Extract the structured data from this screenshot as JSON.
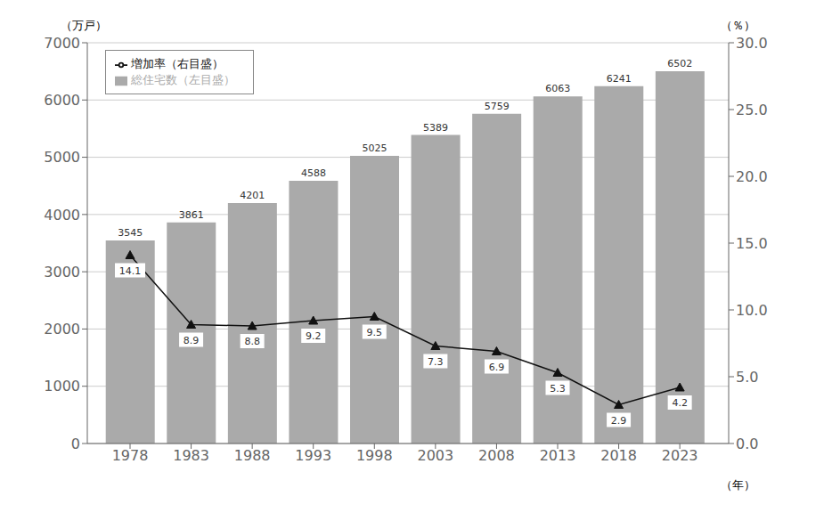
{
  "chart_data": {
    "type": "bar",
    "x_label": "（年）",
    "y_label": "（万戸）",
    "y2_label": "（％）",
    "x": [
      1978,
      1983,
      1988,
      1993,
      1998,
      2003,
      2008,
      2013,
      2018,
      2023
    ],
    "xlim": [
      1974.5,
      2027
    ],
    "xticks": [
      1978,
      1983,
      1988,
      1993,
      1998,
      2003,
      2008,
      2013,
      2018,
      2023
    ],
    "ylim": [
      0,
      7000
    ],
    "yticks": [
      0,
      1000,
      2000,
      3000,
      4000,
      5000,
      6000,
      7000
    ],
    "y2lim": [
      0,
      30.0
    ],
    "y2ticks": [
      {
        "value": 0,
        "label": "0.0"
      },
      {
        "value": 5,
        "label": "5.0"
      },
      {
        "value": 10,
        "label": "10.0"
      },
      {
        "value": 15,
        "label": "15.0"
      },
      {
        "value": 20,
        "label": "20.0"
      },
      {
        "value": 25,
        "label": "25.0"
      },
      {
        "value": 30,
        "label": "30.0"
      }
    ],
    "grid": true,
    "legend": "upper left",
    "series": [
      {
        "name": "総住宅数（左目盛）",
        "type": "bar",
        "color": "#aaaaaa",
        "values": [
          3545,
          3861,
          4201,
          4588,
          5025,
          5389,
          5759,
          6063,
          6241,
          6502
        ],
        "data_labels": true
      },
      {
        "name": "増加率（右目盛）",
        "type": "line",
        "axis": "y2",
        "color": "#111111",
        "marker": "triangle",
        "values": [
          14.1,
          8.9,
          8.8,
          9.2,
          9.5,
          7.3,
          6.9,
          5.3,
          2.9,
          4.2
        ],
        "data_labels": true
      }
    ]
  }
}
